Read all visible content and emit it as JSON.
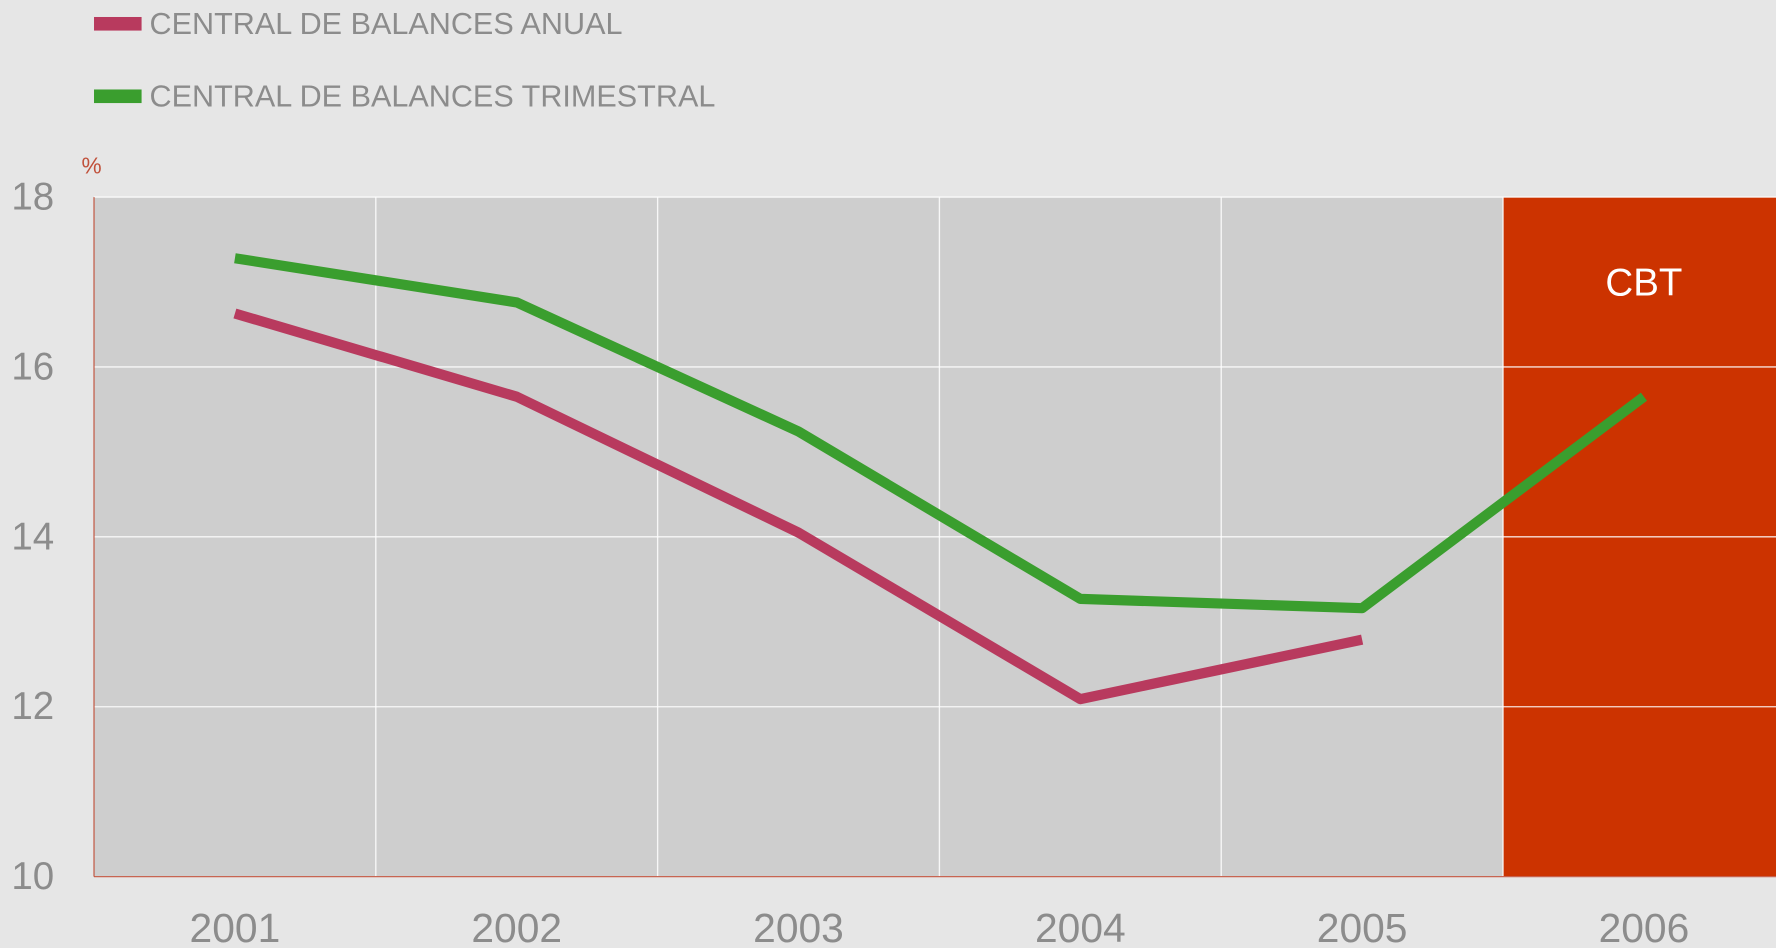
{
  "chart_data": {
    "type": "line",
    "y_unit_label": "%",
    "categories": [
      "2001",
      "2002",
      "2003",
      "2004",
      "2005",
      "2006"
    ],
    "series": [
      {
        "name": "CENTRAL DE BALANCES ANUAL",
        "color": "#b83a5e",
        "values": [
          16.63,
          15.65,
          14.05,
          12.09,
          12.79,
          null
        ]
      },
      {
        "name": "CENTRAL DE BALANCES TRIMESTRAL",
        "color": "#3a9e2e",
        "values": [
          17.28,
          16.76,
          15.24,
          13.27,
          13.16,
          15.65
        ]
      }
    ],
    "ylim": [
      10,
      18
    ],
    "yticks": [
      10,
      12,
      14,
      16,
      18
    ],
    "grid": true,
    "legend": "top-left",
    "annotations": [
      {
        "text": "CBT",
        "category": "2006",
        "color": "#cc3300"
      }
    ]
  }
}
